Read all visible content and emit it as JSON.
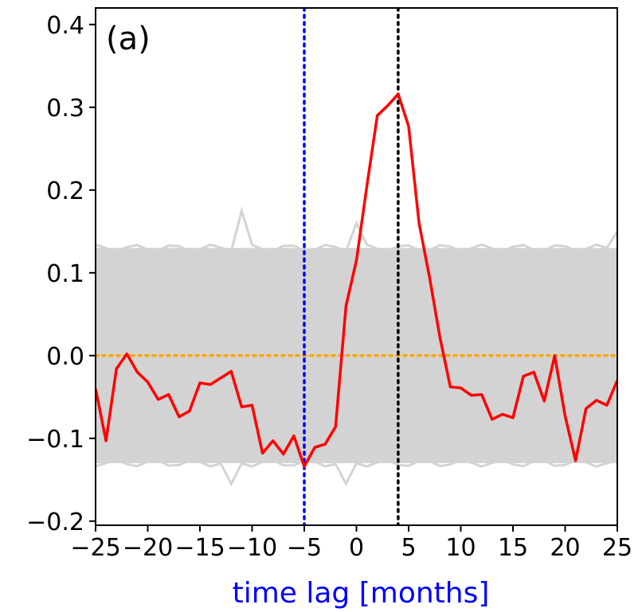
{
  "chart_data": {
    "type": "line",
    "title": "",
    "panel_label": "(a)",
    "xlabel": "time lag  [months]",
    "ylabel": "",
    "xlim": [
      -25,
      25
    ],
    "ylim": [
      -0.205,
      0.42
    ],
    "xticks": [
      -25,
      -20,
      -15,
      -10,
      -5,
      0,
      5,
      10,
      15,
      20,
      25
    ],
    "xtick_labels": [
      "−25",
      "−20",
      "−15",
      "−10",
      "−5",
      "0",
      "5",
      "10",
      "15",
      "20",
      "25"
    ],
    "yticks": [
      -0.2,
      -0.1,
      0.0,
      0.1,
      0.2,
      0.3,
      0.4
    ],
    "ytick_labels": [
      "−0.2",
      "−0.1",
      "0.0",
      "0.1",
      "0.2",
      "0.3",
      "0.4"
    ],
    "grid": false,
    "colors": {
      "main": "#ff0000",
      "surrogates": "#d3d3d3",
      "zero_line": "#ffa500",
      "vline_blue": "#0000ff",
      "vline_black": "#000000",
      "xlabel": "#0000ff"
    },
    "reference_lines": {
      "horizontal_zero": 0.0,
      "vertical_blue": -5,
      "vertical_black": 4
    },
    "surrogate_band": {
      "upper": 0.13,
      "lower": -0.13
    },
    "surrogate_peaks": [
      {
        "x": -11,
        "y": 0.175
      },
      {
        "x": 0,
        "y": 0.16
      },
      {
        "x": 25,
        "y": 0.15
      },
      {
        "x": -12,
        "y": -0.155
      },
      {
        "x": -1,
        "y": -0.155
      }
    ],
    "series": [
      {
        "x": [
          -25,
          -24,
          -23,
          -22,
          -21,
          -20,
          -19,
          -18,
          -17,
          -16,
          -15,
          -14,
          -13,
          -12,
          -11,
          -10,
          -9,
          -8,
          -7,
          -6,
          -5,
          -4,
          -3,
          -2,
          -1,
          0,
          1,
          2,
          3,
          4,
          5,
          6,
          7,
          8,
          9,
          10,
          11,
          12,
          13,
          14,
          15,
          16,
          17,
          18,
          19,
          20,
          21,
          22,
          23,
          24,
          25
        ],
        "values": [
          -0.04,
          -0.103,
          -0.016,
          0.002,
          -0.02,
          -0.032,
          -0.053,
          -0.047,
          -0.074,
          -0.067,
          -0.033,
          -0.035,
          -0.027,
          -0.019,
          -0.062,
          -0.06,
          -0.118,
          -0.103,
          -0.119,
          -0.097,
          -0.134,
          -0.111,
          -0.107,
          -0.086,
          0.06,
          0.115,
          0.205,
          0.29,
          0.302,
          0.316,
          0.277,
          0.16,
          0.095,
          0.022,
          -0.038,
          -0.039,
          -0.048,
          -0.047,
          -0.077,
          -0.071,
          -0.075,
          -0.025,
          -0.02,
          -0.055,
          0.0,
          -0.073,
          -0.127,
          -0.064,
          -0.054,
          -0.06,
          -0.03
        ]
      }
    ]
  }
}
